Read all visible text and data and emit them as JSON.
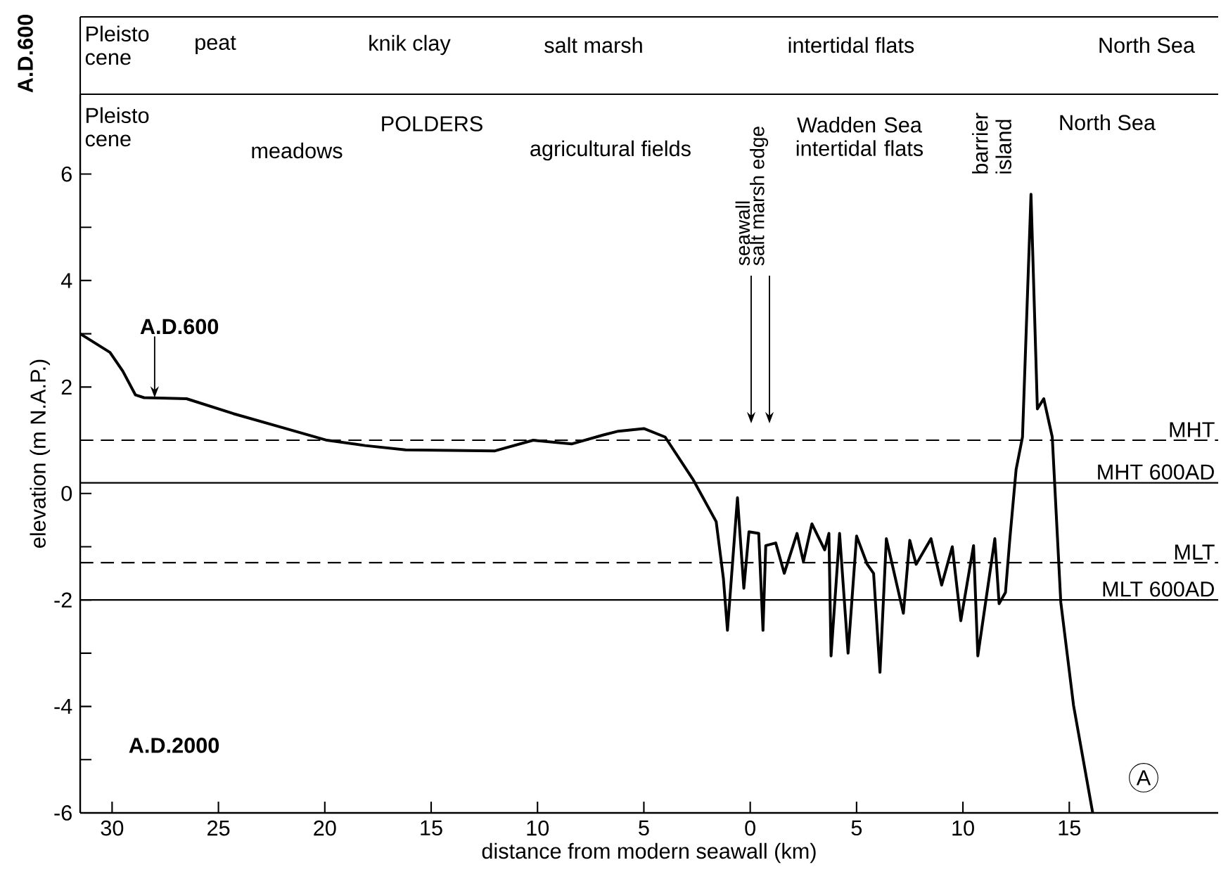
{
  "chart_data": {
    "type": "line",
    "xlabel": "distance from modern seawall (km)",
    "ylabel": "elevation (m N.A.P.)",
    "x": [
      -31.5,
      -30.1,
      -29.5,
      -28.9,
      -28.5,
      -26.5,
      -24.3,
      -22.1,
      -19.9,
      -18.1,
      -16.2,
      -12.0,
      -10.2,
      -8.4,
      -6.9,
      -6.2,
      -5.0,
      -4.0,
      -2.7,
      -1.6,
      -1.26,
      -1.07,
      -0.6,
      -0.3,
      -0.06,
      0.4,
      0.6,
      0.73,
      1.2,
      1.6,
      2.2,
      2.5,
      2.9,
      3.5,
      3.7,
      3.8,
      4.2,
      4.6,
      5.0,
      5.5,
      5.8,
      6.1,
      6.4,
      7.2,
      7.5,
      7.8,
      8.5,
      9.0,
      9.5,
      9.9,
      10.5,
      10.7,
      11.5,
      11.7,
      12.0,
      12.2,
      12.5,
      12.8,
      13.2,
      13.5,
      13.8,
      14.2,
      14.6,
      15.2,
      16.1
    ],
    "series": [
      {
        "color": "#000000",
        "values": [
          3.0,
          2.65,
          2.3,
          1.85,
          1.8,
          1.78,
          1.5,
          1.25,
          1.0,
          0.9,
          0.82,
          0.8,
          1.0,
          0.93,
          1.1,
          1.17,
          1.22,
          1.06,
          0.27,
          -0.53,
          -1.6,
          -2.57,
          -0.08,
          -1.78,
          -0.72,
          -0.75,
          -2.57,
          -0.98,
          -0.93,
          -1.5,
          -0.75,
          -1.28,
          -0.57,
          -1.06,
          -0.75,
          -3.05,
          -0.75,
          -3.0,
          -0.8,
          -1.33,
          -1.5,
          -3.36,
          -0.85,
          -2.25,
          -0.88,
          -1.33,
          -0.85,
          -1.72,
          -1.0,
          -2.39,
          -0.98,
          -3.05,
          -0.85,
          -2.07,
          -1.86,
          -0.88,
          0.45,
          1.06,
          5.62,
          1.59,
          1.78,
          1.06,
          -2.04,
          -3.98,
          -6.0
        ]
      }
    ],
    "xlim": [
      -31.5,
      22
    ],
    "ylim": [
      -6,
      7.5
    ],
    "xticks": [
      {
        "value": -30,
        "label": "30"
      },
      {
        "value": -25,
        "label": "25"
      },
      {
        "value": -20,
        "label": "20"
      },
      {
        "value": -15,
        "label": "15"
      },
      {
        "value": -10,
        "label": "10"
      },
      {
        "value": -5,
        "label": "5"
      },
      0,
      5,
      10,
      15
    ],
    "yticks": [
      -6,
      {
        "value": -5,
        "label": null
      },
      -4,
      {
        "value": -3,
        "label": null
      },
      -2,
      {
        "value": -1,
        "label": null
      },
      0,
      {
        "value": 1,
        "label": null
      },
      2,
      {
        "value": 3,
        "label": null
      },
      4,
      {
        "value": 5,
        "label": null
      },
      6
    ],
    "ref_lines": [
      {
        "axis": "y",
        "value": 1.0,
        "label": "MHT",
        "color": "#000000",
        "line_style": "dashed"
      },
      {
        "axis": "y",
        "value": 0.2,
        "label": "MHT 600AD",
        "color": "#000000",
        "line_style": "solid"
      },
      {
        "axis": "y",
        "value": -1.3,
        "label": "MLT",
        "color": "#000000",
        "line_style": "dashed"
      },
      {
        "axis": "y",
        "value": -2.0,
        "label": "MLT 600AD",
        "color": "#000000",
        "line_style": "solid"
      }
    ],
    "annotations": [
      "A.D.600",
      "Pleisto cene",
      "peat",
      "knik clay",
      "salt marsh",
      "intertidal flats",
      "North Sea",
      "Pleisto cene",
      "meadows",
      "POLDERS",
      "agricultural fields",
      "Wadden Sea intertidal flats",
      "barrier island",
      "North Sea",
      {
        "text": "A.D.600",
        "x": -28,
        "y": 1.8
      },
      "seawall",
      "salt marsh edge",
      "A.D.2000",
      "A"
    ]
  }
}
